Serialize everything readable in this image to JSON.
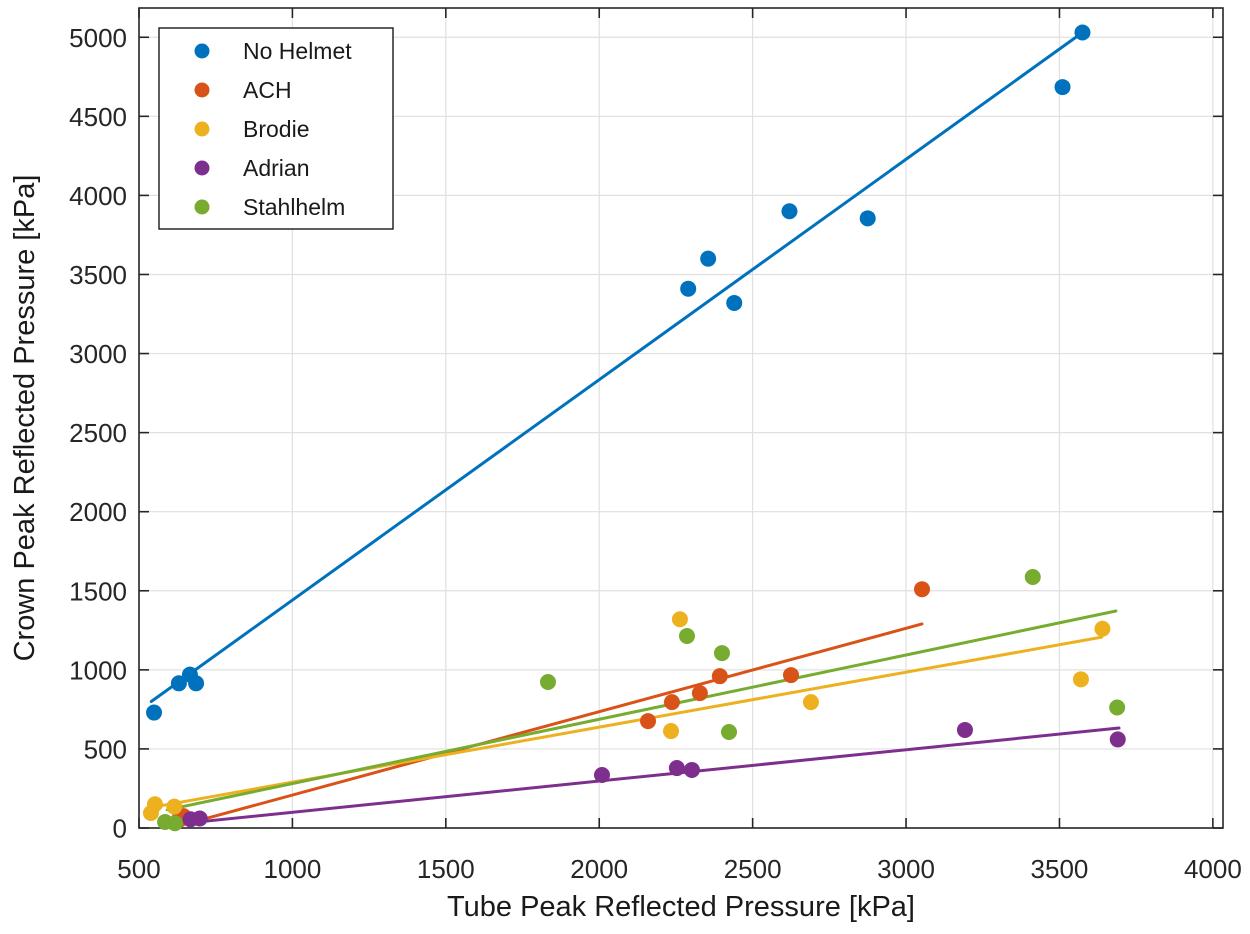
{
  "figure": {
    "background": "#ffffff",
    "axis_color": "#262626",
    "grid_color": "#e0e0e0",
    "legend_border_color": "#1a1a1a"
  },
  "chart_data": {
    "type": "scatter",
    "title": "",
    "xlabel": "Tube Peak Reflected Pressure [kPa]",
    "ylabel": "Crown Peak Reflected Pressure [kPa]",
    "xlim": [
      500,
      4033
    ],
    "ylim": [
      0,
      5185
    ],
    "xticks": [
      500,
      1000,
      1500,
      2000,
      2500,
      3000,
      3500,
      4000
    ],
    "yticks": [
      0,
      500,
      1000,
      1500,
      2000,
      2500,
      3000,
      3500,
      4000,
      4500,
      5000
    ],
    "grid": true,
    "legend_position": "top-left",
    "series": [
      {
        "name": "No Helmet",
        "color": "#0072BD",
        "points": [
          [
            549,
            730
          ],
          [
            630,
            915
          ],
          [
            666,
            970
          ],
          [
            686,
            915
          ],
          [
            2290,
            3410
          ],
          [
            2355,
            3600
          ],
          [
            2440,
            3320
          ],
          [
            2620,
            3900
          ],
          [
            2875,
            3855
          ],
          [
            3510,
            4685
          ],
          [
            3575,
            5030
          ]
        ],
        "fit_line": [
          [
            540,
            800
          ],
          [
            3575,
            5030
          ]
        ]
      },
      {
        "name": "ACH",
        "color": "#D95319",
        "points": [
          [
            628,
            48
          ],
          [
            645,
            75
          ],
          [
            2159,
            676
          ],
          [
            2237,
            796
          ],
          [
            2328,
            853
          ],
          [
            2393,
            960
          ],
          [
            2625,
            967
          ],
          [
            3052,
            1510
          ]
        ],
        "fit_line": [
          [
            620,
            8
          ],
          [
            3052,
            1290
          ]
        ]
      },
      {
        "name": "Brodie",
        "color": "#EDB120",
        "points": [
          [
            539,
            95
          ],
          [
            552,
            150
          ],
          [
            615,
            135
          ],
          [
            2234,
            613
          ],
          [
            2263,
            1320
          ],
          [
            2690,
            796
          ],
          [
            3570,
            940
          ],
          [
            3640,
            1260
          ]
        ],
        "fit_line": [
          [
            540,
            130
          ],
          [
            3638,
            1207
          ]
        ]
      },
      {
        "name": "Adrian",
        "color": "#7E2F8E",
        "points": [
          [
            668,
            55
          ],
          [
            698,
            60
          ],
          [
            2009,
            335
          ],
          [
            2253,
            379
          ],
          [
            2302,
            367
          ],
          [
            3192,
            620
          ],
          [
            3690,
            560
          ]
        ],
        "fit_line": [
          [
            660,
            32
          ],
          [
            3694,
            632
          ]
        ]
      },
      {
        "name": "Stahlhelm",
        "color": "#77AC30",
        "points": [
          [
            585,
            38
          ],
          [
            617,
            30
          ],
          [
            1833,
            923
          ],
          [
            2286,
            1214
          ],
          [
            2400,
            1106
          ],
          [
            2423,
            607
          ],
          [
            3413,
            1587
          ],
          [
            3688,
            762
          ]
        ],
        "fit_line": [
          [
            592,
            115
          ],
          [
            3684,
            1372
          ]
        ]
      }
    ]
  }
}
